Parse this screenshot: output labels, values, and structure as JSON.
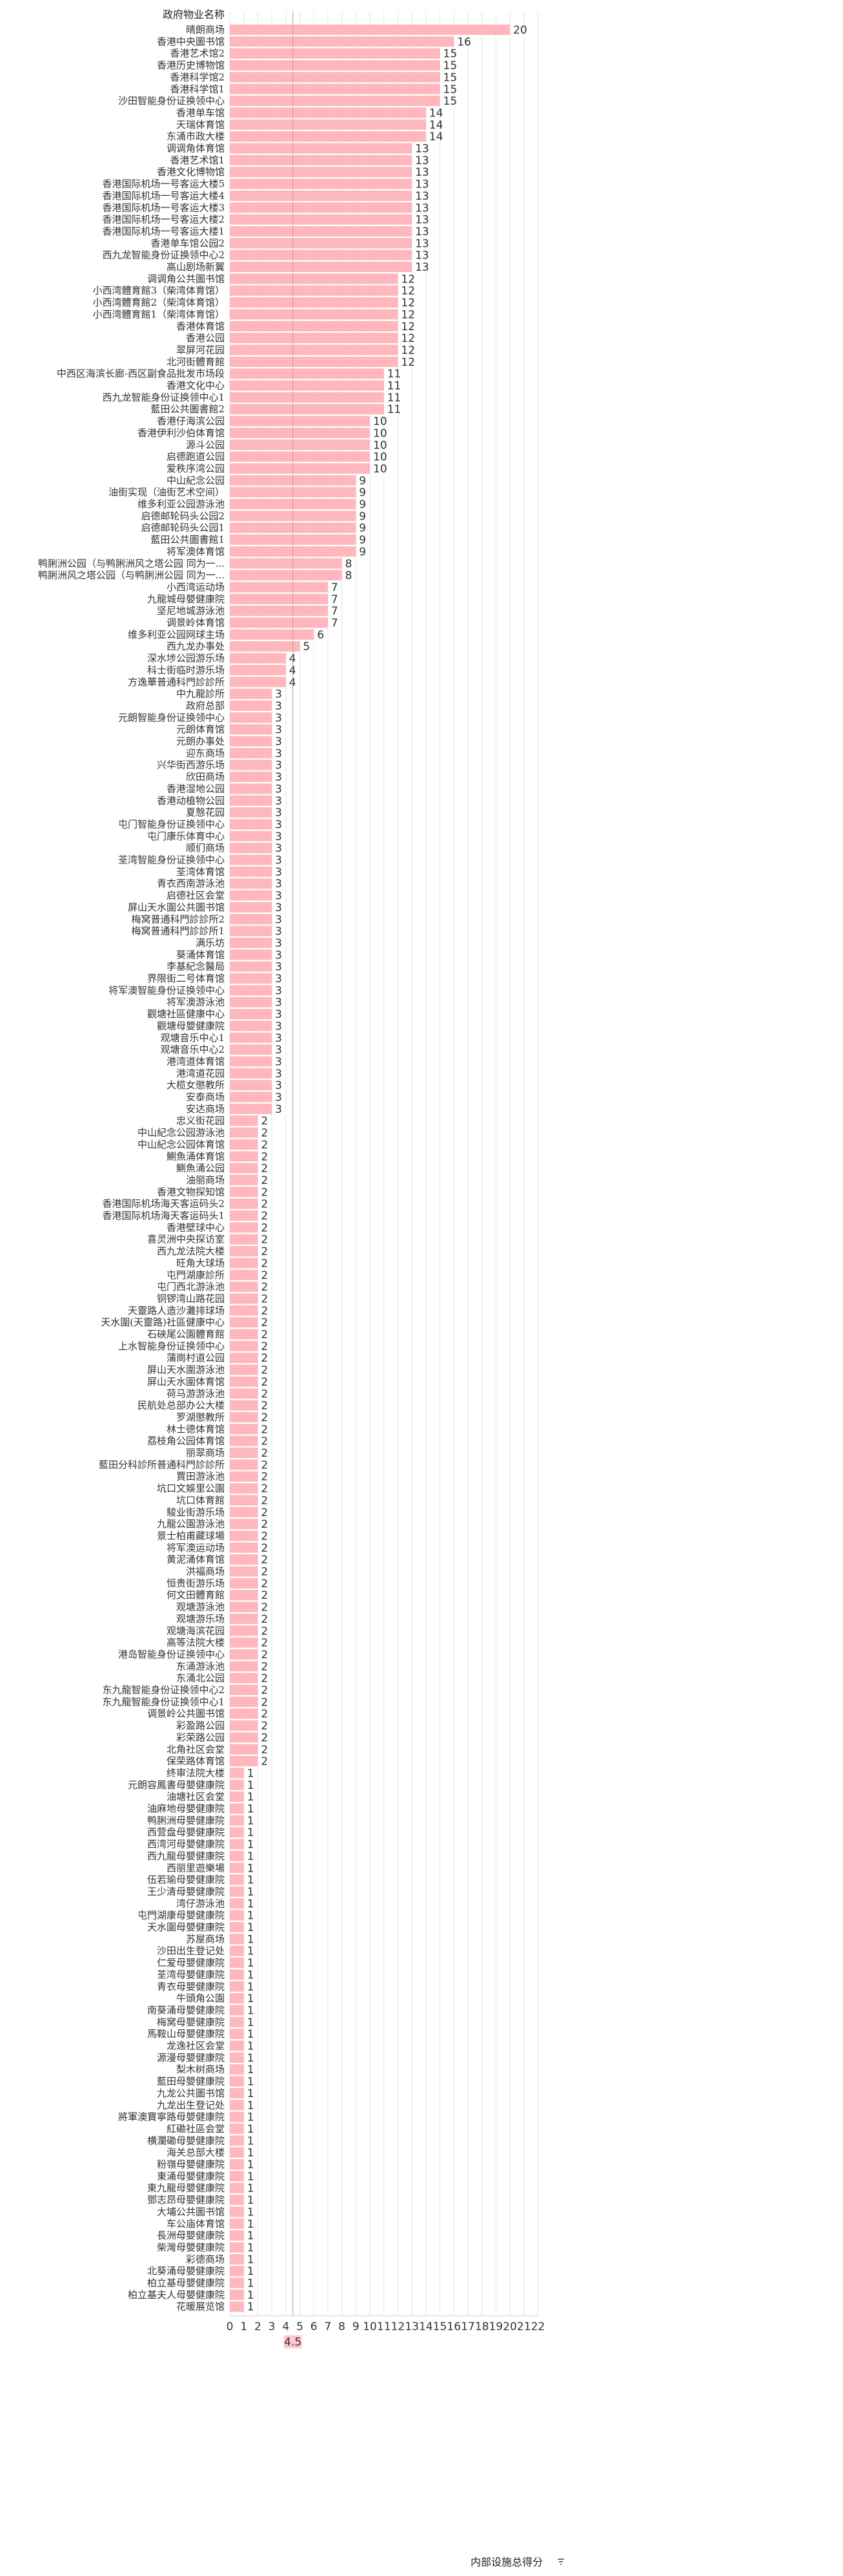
{
  "chart_data": {
    "type": "bar",
    "orientation": "horizontal",
    "column_header": "政府物业名称",
    "xlabel": "内部设施总得分",
    "sort_icon": "sort-descending-icon",
    "reference_line_label": "4.5",
    "reference_line_value": 4.5,
    "xlim": [
      0,
      22
    ],
    "xticks": [
      0,
      1,
      2,
      3,
      4,
      5,
      6,
      7,
      8,
      9,
      10,
      11,
      12,
      13,
      14,
      15,
      16,
      17,
      18,
      19,
      20,
      21,
      22
    ],
    "grid": true,
    "bar_color": "#ffb6bc",
    "reference_line_color": "#aaaaaa",
    "reference_badge_color": "#ffc6cb",
    "categories": [
      "晴朗商场",
      "香港中央圖书馆",
      "香港艺术馆2",
      "香港历史博物馆",
      "香港科学馆2",
      "香港科学馆1",
      "沙田智能身份证换领中心",
      "香港单车馆",
      "天瑞体育馆",
      "东涌市政大楼",
      "调调角体育馆",
      "香港艺术馆1",
      "香港文化博物馆",
      "香港国际机场一号客运大楼5",
      "香港国际机场一号客运大楼4",
      "香港国际机场一号客运大楼3",
      "香港国际机场一号客运大楼2",
      "香港国际机场一号客运大楼1",
      "香港单车馆公园2",
      "西九龙智能身份证换领中心2",
      "高山剧场新翼",
      "调调角公共圖书馆",
      "小西湾體育館3（柴湾体育馆）",
      "小西湾體育館2（柴湾体育馆）",
      "小西湾體育館1（柴湾体育馆）",
      "香港体育馆",
      "香港公园",
      "翠屏河花园",
      "北河街體育館",
      "中西区海滨长廊-西区副食品批发市场段",
      "香港文化中心",
      "西九龙智能身份证换领中心1",
      "藍田公共圖書館2",
      "香港仔海滨公园",
      "香港伊利沙伯体育馆",
      "源斗公园",
      "启德跑道公园",
      "爱秩序湾公园",
      "中山紀念公园",
      "油街实现（油街艺术空间）",
      "维多利亚公园游泳池",
      "启德邮轮码头公园2",
      "启德邮轮码头公园1",
      "藍田公共圖書館1",
      "将军澳体育馆",
      "鸭脷洲公园（与鸭脷洲风之塔公园 同为一...",
      "鸭脷洲风之塔公园（与鸭脷洲公园 同为一...",
      "小西湾运动场",
      "九龍城母嬰健康院",
      "坚尼地城游泳池",
      "调景岭体育馆",
      "维多利亚公园网球主场",
      "西九龙办事处",
      "深水埗公园游乐场",
      "科士街临时游乐场",
      "方逸華普通科門診診所",
      "中九龍診所",
      "政府总部",
      "元朗智能身份证换领中心",
      "元朗体育馆",
      "元朗办事处",
      "迎东商场",
      "兴华街西游乐场",
      "欣田商场",
      "香港湿地公园",
      "香港动植物公园",
      "夏慤花园",
      "屯门智能身份证换领中心",
      "屯门康乐体育中心",
      "顺们商场",
      "荃湾智能身份证换领中心",
      "荃湾体育馆",
      "青衣西南游泳池",
      "启德社区会堂",
      "屏山天水圍公共圖书馆",
      "梅窝普通科門診診所2",
      "梅窝普通科門診診所1",
      "满乐坊",
      "葵涌体育馆",
      "李基紀念醫局",
      "界限街二号体育馆",
      "将军澳智能身份证换领中心",
      "将军澳游泳池",
      "觀塘社區健康中心",
      "觀塘母嬰健康院",
      "观塘音乐中心1",
      "观塘音乐中心2",
      "港湾道体育馆",
      "港湾道花园",
      "大榄女懲教所",
      "安泰商场",
      "安达商场",
      "忠义街花园",
      "中山紀念公园游泳池",
      "中山紀念公园体育馆",
      "鰂魚涌体育馆",
      "鰂魚涌公园",
      "油丽商场",
      "香港文物探知馆",
      "香港国际机场海天客运码头2",
      "香港国际机场海天客运码头1",
      "香港壁球中心",
      "喜灵洲中央探访室",
      "西九龙法院大楼",
      "旺角大球场",
      "屯門湖康診所",
      "屯门西北游泳池",
      "铜锣湾山路花园",
      "天靈路人造沙灘排球场",
      "天水圍(天靈路)社區健康中心",
      "石硤尾公園體育館",
      "上水智能身份证换领中心",
      "蒲崗村道公园",
      "屏山天水圍游泳池",
      "屏山天水圍体育馆",
      "荷马游游泳池",
      "民航处总部办公大楼",
      "罗湖懲教所",
      "林士德体育馆",
      "荔枝角公园体育馆",
      "丽翠商场",
      "藍田分科診所普通科門診診所",
      "賈田游泳池",
      "坑口文娛里公園",
      "坑口体育館",
      "駿业街游乐场",
      "九龍公園游泳池",
      "景士柏甫藏球場",
      "将军澳运动场",
      "黄泥涌体育馆",
      "洪福商场",
      "恒贵街游乐场",
      "何文田體育館",
      "观塘游泳池",
      "观塘游乐场",
      "观塘海滨花园",
      "高等法院大楼",
      "港岛智能身份证换领中心",
      "东涌游泳池",
      "东涌北公园",
      "东九龍智能身份证换领中心2",
      "东九龍智能身份证换领中心1",
      "调景岭公共圖书馆",
      "彩盈路公园",
      "彩荣路公园",
      "北角社区会堂",
      "保荣路体育馆",
      "终审法院大楼",
      "元朗容鳳書母嬰健康院",
      "油塘社区会堂",
      "油麻地母嬰健康院",
      "鸭脷洲母嬰健康院",
      "西营盘母嬰健康院",
      "西湾河母嬰健康院",
      "西九龍母嬰健康院",
      "西丽里遊樂場",
      "伍若瑜母嬰健康院",
      "王少清母嬰健康院",
      "湾仔游泳池",
      "屯門湖康母嬰健康院",
      "天水圍母嬰健康院",
      "苏屋商场",
      "沙田出生登记处",
      "仁爱母嬰健康院",
      "荃湾母嬰健康院",
      "青衣母嬰健康院",
      "牛頭角公園",
      "南葵涌母嬰健康院",
      "梅窝母嬰健康院",
      "馬鞍山母嬰健康院",
      "龙逸社区会堂",
      "源漫母嬰健康院",
      "梨木树商场",
      "藍田母嬰健康院",
      "九龙公共圖书馆",
      "九龙出生登记处",
      "將軍澳寶寧路母嬰健康院",
      "紅磡社區会堂",
      "横瀾磡母嬰健康院",
      "海关总部大楼",
      "粉嶺母嬰健康院",
      "東涌母嬰健康院",
      "東九龍母嬰健康院",
      "鄧志昂母嬰健康院",
      "大埔公共圖书馆",
      "车公庙体育馆",
      "長洲母嬰健康院",
      "柴灣母嬰健康院",
      "彩德商场",
      "北葵涌母嬰健康院",
      "柏立基母嬰健康院",
      "柏立基夫人母嬰健康院",
      "花暖展览馆"
    ],
    "values": [
      20,
      16,
      15,
      15,
      15,
      15,
      15,
      14,
      14,
      14,
      13,
      13,
      13,
      13,
      13,
      13,
      13,
      13,
      13,
      13,
      13,
      12,
      12,
      12,
      12,
      12,
      12,
      12,
      12,
      11,
      11,
      11,
      11,
      10,
      10,
      10,
      10,
      10,
      9,
      9,
      9,
      9,
      9,
      9,
      9,
      8,
      8,
      7,
      7,
      7,
      7,
      6,
      5,
      4,
      4,
      4,
      3,
      3,
      3,
      3,
      3,
      3,
      3,
      3,
      3,
      3,
      3,
      3,
      3,
      3,
      3,
      3,
      3,
      3,
      3,
      3,
      3,
      3,
      3,
      3,
      3,
      3,
      3,
      3,
      3,
      3,
      3,
      3,
      3,
      3,
      3,
      3,
      2,
      2,
      2,
      2,
      2,
      2,
      2,
      2,
      2,
      2,
      2,
      2,
      2,
      2,
      2,
      2,
      2,
      2,
      2,
      2,
      2,
      2,
      2,
      2,
      2,
      2,
      2,
      2,
      2,
      2,
      2,
      2,
      2,
      2,
      2,
      2,
      2,
      2,
      2,
      2,
      2,
      2,
      2,
      2,
      2,
      2,
      2,
      2,
      2,
      2,
      2,
      2,
      2,
      2,
      2,
      1,
      1,
      1,
      1,
      1,
      1,
      1,
      1,
      1,
      1,
      1,
      1,
      1,
      1,
      1,
      1,
      1,
      1,
      1,
      1,
      1,
      1,
      1,
      1,
      1,
      1,
      1,
      1,
      1,
      1,
      1,
      1,
      1,
      1,
      1,
      1,
      1,
      1,
      1,
      1,
      1,
      1,
      1,
      1,
      1,
      1
    ]
  }
}
